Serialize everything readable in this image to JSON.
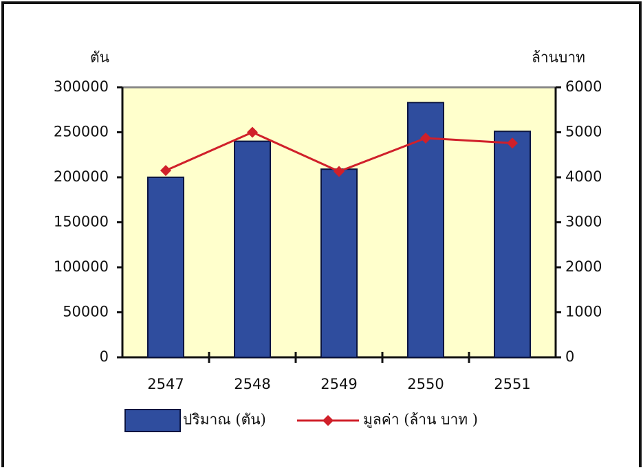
{
  "chart_data": {
    "type": "bar-line",
    "y_label": "ตัน",
    "y2_label": "ล้านบาท",
    "categories": [
      "2547",
      "2548",
      "2549",
      "2550",
      "2551"
    ],
    "series": [
      {
        "name": "ปริมาณ (ตัน)",
        "type": "bar",
        "color": "#2f4d9e",
        "values": [
          200000,
          240000,
          209000,
          283000,
          251000
        ]
      },
      {
        "name": "มูลค่า (ล้าน บาท )",
        "type": "line",
        "axis": "y2",
        "color": "#d0202a",
        "values": [
          4150,
          5000,
          4130,
          4870,
          4760
        ]
      }
    ],
    "ylim": [
      0,
      300000
    ],
    "yticks": [
      0,
      50000,
      100000,
      150000,
      200000,
      250000,
      300000
    ],
    "y2lim": [
      0,
      6000
    ],
    "y2ticks": [
      0,
      1000,
      2000,
      3000,
      4000,
      5000,
      6000
    ]
  }
}
